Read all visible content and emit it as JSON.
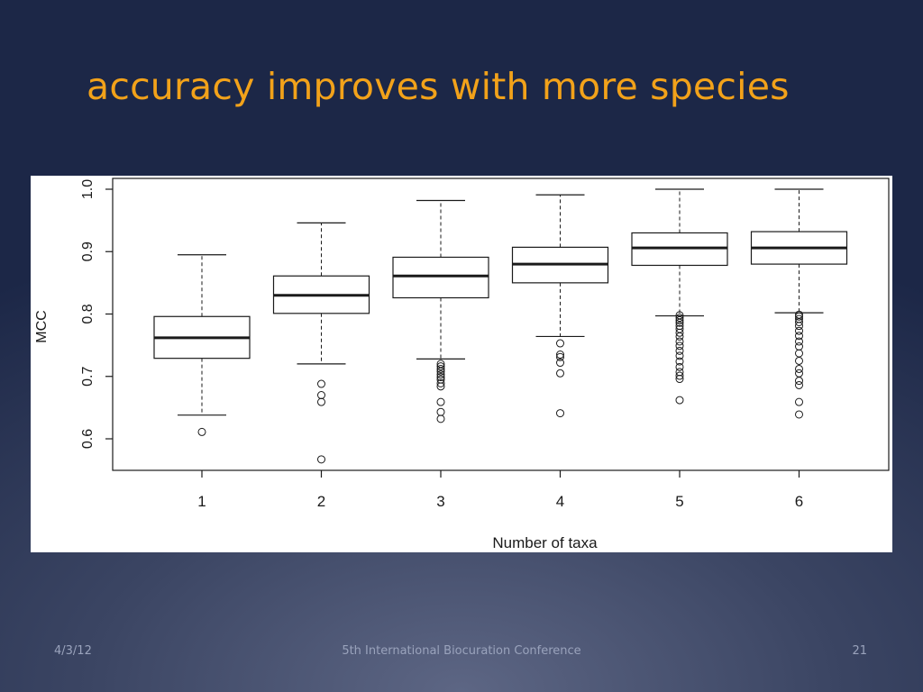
{
  "slide": {
    "title": "accuracy improves with more species"
  },
  "footer": {
    "date": "4/3/12",
    "conference": "5th International Biocuration Conference",
    "page_number": "21"
  },
  "colors": {
    "title": "#f2a21a",
    "background": "#1c2747",
    "chart_ink": "#1a1a1a"
  },
  "chart_data": {
    "type": "box",
    "title": "",
    "xlabel": "Number of taxa",
    "ylabel": "MCC",
    "ylim": [
      0.55,
      1.0
    ],
    "yticks": [
      0.6,
      0.7,
      0.8,
      0.9,
      1.0
    ],
    "ytick_labels": [
      "0.6",
      "0.7",
      "0.8",
      "0.9",
      "1.0"
    ],
    "categories": [
      "1",
      "2",
      "3",
      "4",
      "5",
      "6"
    ],
    "grid": false,
    "legend": "none",
    "boxes": [
      {
        "category": "1",
        "whisker_low": 0.638,
        "q1": 0.729,
        "median": 0.762,
        "q3": 0.796,
        "whisker_high": 0.895,
        "outliers": [
          0.611
        ]
      },
      {
        "category": "2",
        "whisker_low": 0.72,
        "q1": 0.801,
        "median": 0.83,
        "q3": 0.861,
        "whisker_high": 0.946,
        "outliers": [
          0.688,
          0.67,
          0.659,
          0.567
        ]
      },
      {
        "category": "3",
        "whisker_low": 0.728,
        "q1": 0.826,
        "median": 0.861,
        "q3": 0.891,
        "whisker_high": 0.982,
        "outliers": [
          0.72,
          0.716,
          0.712,
          0.708,
          0.703,
          0.699,
          0.695,
          0.689,
          0.684,
          0.659,
          0.643,
          0.632
        ]
      },
      {
        "category": "4",
        "whisker_low": 0.764,
        "q1": 0.85,
        "median": 0.88,
        "q3": 0.907,
        "whisker_high": 0.991,
        "outliers": [
          0.753,
          0.735,
          0.731,
          0.722,
          0.705,
          0.641
        ]
      },
      {
        "category": "5",
        "whisker_low": 0.797,
        "q1": 0.878,
        "median": 0.906,
        "q3": 0.93,
        "whisker_high": 1.0,
        "outliers": [
          0.798,
          0.794,
          0.79,
          0.786,
          0.781,
          0.776,
          0.77,
          0.764,
          0.756,
          0.749,
          0.741,
          0.733,
          0.724,
          0.715,
          0.707,
          0.701,
          0.696,
          0.662
        ]
      },
      {
        "category": "6",
        "whisker_low": 0.802,
        "q1": 0.88,
        "median": 0.906,
        "q3": 0.932,
        "whisker_high": 1.0,
        "outliers": [
          0.799,
          0.796,
          0.792,
          0.787,
          0.781,
          0.773,
          0.765,
          0.756,
          0.748,
          0.737,
          0.725,
          0.712,
          0.705,
          0.693,
          0.686,
          0.659,
          0.639
        ]
      }
    ]
  }
}
